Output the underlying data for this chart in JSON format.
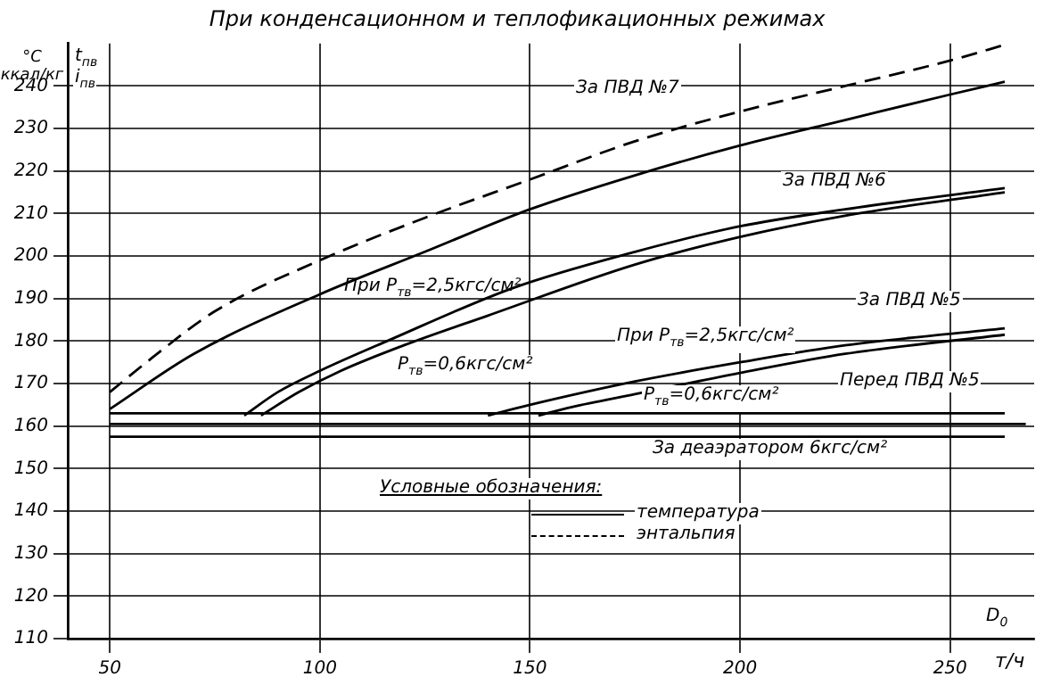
{
  "chart_data": {
    "type": "line",
    "title": "При конденсационном и теплофикационных режимах",
    "xlabel": "т/ч",
    "ylabel": "°C ккал/кг",
    "xlim": [
      40,
      270
    ],
    "xticks": [
      50,
      100,
      150,
      200,
      250
    ],
    "ylim": [
      110,
      250
    ],
    "yticks": [
      110,
      120,
      130,
      140,
      150,
      160,
      170,
      180,
      190,
      200,
      210,
      220,
      230,
      240
    ],
    "grid": true,
    "legend": false,
    "marker": "none",
    "line_style": "solid",
    "series": [
      {
        "color": "#000000",
        "line_style": "dashed",
        "x": [
          50,
          60,
          75,
          100,
          125,
          150,
          175,
          200,
          225,
          250,
          264
        ],
        "values": [
          168,
          176,
          187,
          199,
          209,
          218,
          227,
          234,
          240,
          246,
          250
        ]
      },
      {
        "color": "#000000",
        "x": [
          50,
          70,
          100,
          125,
          150,
          175,
          200,
          225,
          250,
          263
        ],
        "values": [
          164,
          177,
          191,
          201,
          211,
          219,
          226,
          232,
          238,
          241
        ]
      },
      {
        "color": "#000000",
        "x": [
          82,
          90,
          100,
          116,
          146,
          175,
          200,
          225,
          263
        ],
        "values": [
          162.5,
          168,
          173,
          180,
          192.5,
          201,
          207,
          211,
          216
        ]
      },
      {
        "color": "#000000",
        "x": [
          86,
          95,
          105,
          120,
          140,
          175,
          200,
          225,
          263
        ],
        "values": [
          162.5,
          168,
          173,
          179,
          186,
          198,
          204.5,
          209.5,
          215
        ]
      },
      {
        "color": "#000000",
        "x": [
          140,
          150,
          175,
          200,
          225,
          263
        ],
        "values": [
          162.5,
          165,
          170.5,
          175,
          179,
          183
        ]
      },
      {
        "color": "#000000",
        "x": [
          152,
          160,
          175,
          200,
          225,
          263
        ],
        "values": [
          162.5,
          164.5,
          167.5,
          172.5,
          177,
          181.5
        ]
      },
      {
        "color": "#000000",
        "x": [
          50,
          263
        ],
        "values": [
          163,
          163
        ]
      },
      {
        "color": "#000000",
        "x": [
          50,
          268
        ],
        "values": [
          160.5,
          160.5
        ]
      },
      {
        "color": "#000000",
        "x": [
          50,
          263
        ],
        "values": [
          157.5,
          157.5
        ]
      }
    ],
    "annotations": [
      "Условные обозначения:",
      "температура",
      "энтальпия",
      "t$_{пв}$",
      "i$_{пв}$",
      "D$_{0}$",
      "За ПВД №7",
      "За ПВД №6",
      "При P$_{тв}$=2,5кгс/см²",
      "P$_{тв}$=0,6кгс/см²",
      "За ПВД №5",
      "При P$_{тв}$=2,5кгс/см²",
      "P$_{тв}$=0,6кгс/см²",
      "Перед ПВД №5",
      "За деаэратором 6кгс/см²"
    ]
  }
}
